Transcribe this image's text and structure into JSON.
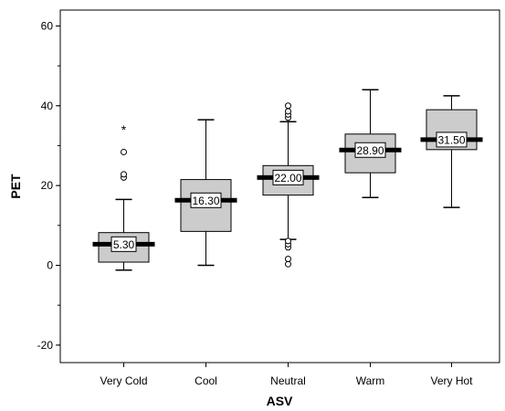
{
  "chart_data": {
    "type": "boxplot",
    "xlabel": "ASV",
    "ylabel": "PET",
    "ylim": [
      -25,
      65
    ],
    "yticks": [
      -20,
      0,
      20,
      40,
      60
    ],
    "ytick_labels": [
      "-20",
      "0",
      "20",
      "40",
      "60"
    ],
    "grid": false,
    "colors": {
      "box_fill": "#cccccc",
      "stroke": "#000000",
      "label_bg": "#ffffff"
    },
    "categories": [
      "Very Cold",
      "Cool",
      "Neutral",
      "Warm",
      "Very Hot"
    ],
    "boxes": [
      {
        "category": "Very Cold",
        "whisker_low": -1.2,
        "q1": 0.8,
        "median": 5.3,
        "q3": 8.2,
        "whisker_high": 16.5,
        "median_label": "5.30",
        "outliers": [
          22.0,
          22.8,
          28.4
        ],
        "extremes": [
          34.2
        ]
      },
      {
        "category": "Cool",
        "whisker_low": 0.0,
        "q1": 8.5,
        "median": 16.3,
        "q3": 21.5,
        "whisker_high": 36.5,
        "median_label": "16.30",
        "outliers": [],
        "extremes": []
      },
      {
        "category": "Neutral",
        "whisker_low": 6.5,
        "q1": 17.6,
        "median": 22.0,
        "q3": 25.0,
        "whisker_high": 36.0,
        "median_label": "22.00",
        "outliers": [
          37.0,
          37.8,
          38.6,
          40.0,
          0.3,
          1.6,
          4.5,
          5.3,
          6.1
        ],
        "extremes": []
      },
      {
        "category": "Warm",
        "whisker_low": 17.0,
        "q1": 23.2,
        "median": 28.9,
        "q3": 32.9,
        "whisker_high": 44.0,
        "median_label": "28.90",
        "outliers": [],
        "extremes": []
      },
      {
        "category": "Very Hot",
        "whisker_low": 14.5,
        "q1": 29.0,
        "median": 31.5,
        "q3": 39.0,
        "whisker_high": 42.5,
        "median_label": "31.50",
        "outliers": [],
        "extremes": []
      }
    ]
  }
}
